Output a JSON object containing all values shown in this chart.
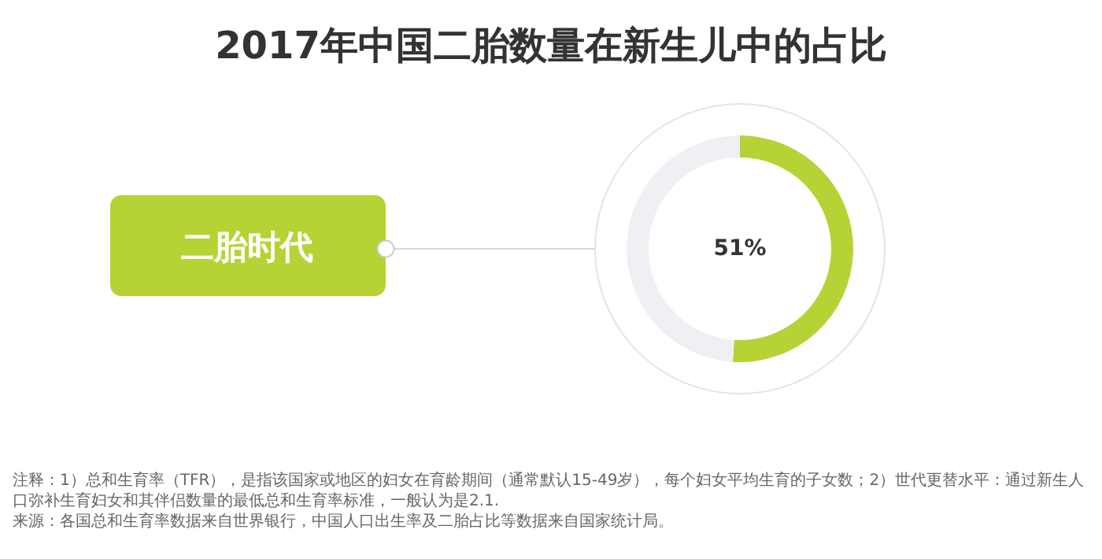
{
  "chart_data": {
    "type": "donut",
    "title": "2017年中国二胎数量在新生儿中的占比",
    "categories": [
      null,
      null
    ],
    "values": [
      51,
      49
    ],
    "colors": [
      "#b5d334",
      "#eef0f3"
    ],
    "value_labels": [
      "51%",
      null
    ],
    "legend": false,
    "annotations": [
      "二胎时代",
      "注释：1）总和生育率（TFR），是指该国家或地区的妇女在育龄期间（通常默认15-49岁），每个妇女平均生育的子女数；2）世代更替水平：通过新生人口弥补生育妇女和其伴侣数量的最低总和生育率标准，一般认为是2.1.",
      "来源：各国总和生育率数据来自世界银行，中国人口出生率及二胎占比等数据来自国家统计局。"
    ]
  }
}
